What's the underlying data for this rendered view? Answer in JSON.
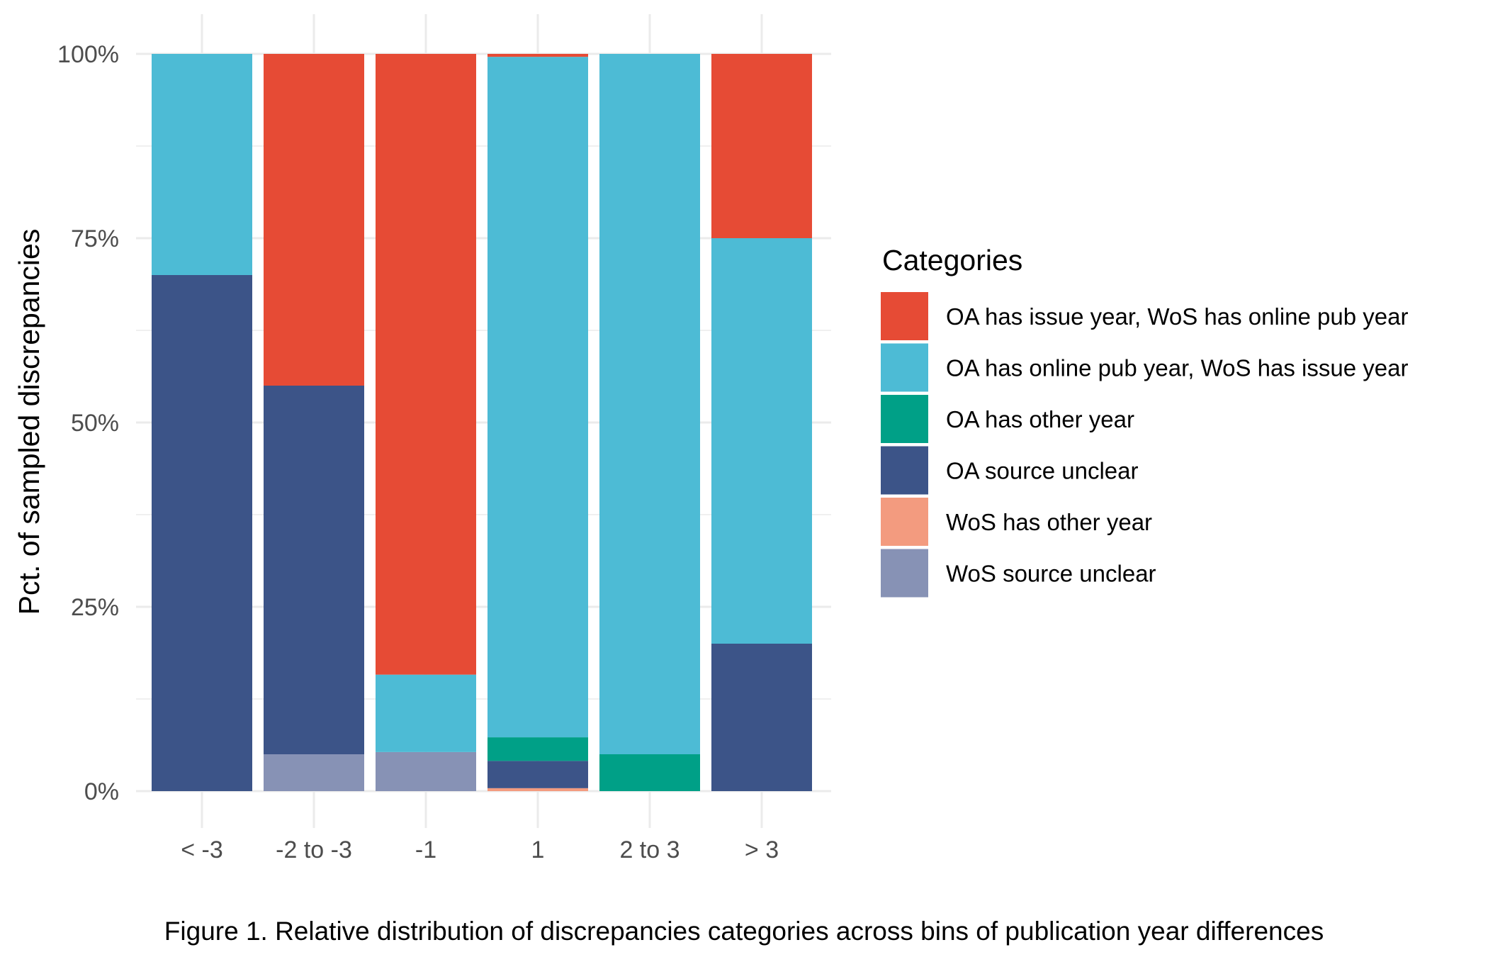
{
  "chart_data": {
    "type": "bar",
    "stacked": true,
    "percent": true,
    "categories": [
      "< -3",
      "-2 to -3",
      "-1",
      "1",
      "2 to 3",
      "> 3"
    ],
    "ylabel": "Pct. of sampled discrepancies",
    "xlabel": "",
    "ylim": [
      0,
      1
    ],
    "y_ticks": [
      0,
      0.25,
      0.5,
      0.75,
      1
    ],
    "y_tick_labels": [
      "0%",
      "25%",
      "50%",
      "75%",
      "100%"
    ],
    "grid": true,
    "legend_title": "Categories",
    "legend_position": "right",
    "series": [
      {
        "name": "WoS source unclear",
        "color": "#8792b5",
        "values": [
          0,
          0.05,
          0.053,
          0,
          0,
          0
        ]
      },
      {
        "name": "WoS has other year",
        "color": "#f39b7f",
        "values": [
          0,
          0,
          0,
          0.004,
          0,
          0
        ]
      },
      {
        "name": "OA source unclear",
        "color": "#3c5488",
        "values": [
          0.7,
          0.5,
          0,
          0.037,
          0,
          0.2
        ]
      },
      {
        "name": "OA has other year",
        "color": "#00a087",
        "values": [
          0,
          0,
          0,
          0.032,
          0.05,
          0
        ]
      },
      {
        "name": "OA has online pub year, WoS has issue year",
        "color": "#4dbbd5",
        "values": [
          0.3,
          0,
          0.105,
          0.923,
          0.95,
          0.55
        ]
      },
      {
        "name": "OA has issue year, WoS has online pub year",
        "color": "#e64b35",
        "values": [
          0,
          0.45,
          0.842,
          0.004,
          0,
          0.25
        ]
      }
    ],
    "legend_order": [
      "OA has issue year, WoS has online pub year",
      "OA has online pub year, WoS has issue year",
      "OA has other year",
      "OA source unclear",
      "WoS has other year",
      "WoS source unclear"
    ]
  },
  "caption": "Figure 1. Relative distribution of discrepancies categories across bins of publication year differences"
}
